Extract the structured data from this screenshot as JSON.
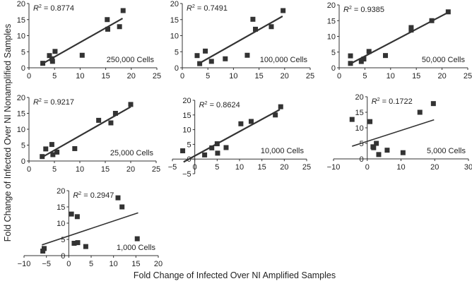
{
  "chart_data": {
    "type": "scatter",
    "ylabel": "Fold Change of Infected Over NI Nonamplified Samples",
    "xlabel": "Fold Change of Infected Over NI Amplified Samples",
    "panels": [
      {
        "label": "250,000 Cells",
        "r2": "0.8774",
        "xlim": [
          0,
          25
        ],
        "ylim": [
          0,
          20
        ],
        "xticks": [
          0,
          5,
          10,
          15,
          20,
          25
        ],
        "yticks": [
          0,
          5,
          10,
          15,
          20
        ],
        "fit": {
          "slope": 0.9,
          "intercept": -1.1,
          "xrange": [
            2.7,
            18.3
          ]
        },
        "points": [
          [
            2.7,
            1.4
          ],
          [
            4,
            3.8
          ],
          [
            4.5,
            2.8
          ],
          [
            4.6,
            2
          ],
          [
            5.1,
            5.1
          ],
          [
            10.4,
            3.9
          ],
          [
            15.3,
            15
          ],
          [
            15.4,
            12
          ],
          [
            17.7,
            12.8
          ],
          [
            18.4,
            17.8
          ]
        ]
      },
      {
        "label": "100,000 Cells",
        "r2": "0.7491",
        "xlim": [
          0,
          25
        ],
        "ylim": [
          0,
          20
        ],
        "xticks": [
          0,
          5,
          10,
          15,
          20,
          25
        ],
        "yticks": [
          0,
          5,
          10,
          15,
          20
        ],
        "fit": {
          "slope": 0.9,
          "intercept": -1.6,
          "xrange": [
            3,
            19.6
          ]
        },
        "points": [
          [
            2.9,
            3.8
          ],
          [
            3.4,
            1.3
          ],
          [
            4.5,
            5.2
          ],
          [
            5.7,
            2
          ],
          [
            8.4,
            2.8
          ],
          [
            12.7,
            3.9
          ],
          [
            13.8,
            15.1
          ],
          [
            14.3,
            12
          ],
          [
            17.4,
            12.8
          ],
          [
            19.7,
            17.8
          ]
        ]
      },
      {
        "label": "50,000 Cells",
        "r2": "0.9385",
        "xlim": [
          0,
          25
        ],
        "ylim": [
          0,
          20
        ],
        "xticks": [
          0,
          5,
          10,
          15,
          20,
          25
        ],
        "yticks": [
          0,
          5,
          10,
          15,
          20
        ],
        "fit": {
          "slope": 0.86,
          "intercept": -0.6,
          "xrange": [
            2.2,
            21.2
          ]
        },
        "points": [
          [
            2.2,
            3.8
          ],
          [
            2.2,
            1.4
          ],
          [
            4.3,
            2
          ],
          [
            4.8,
            2.8
          ],
          [
            5.8,
            5.2
          ],
          [
            9,
            3.9
          ],
          [
            14,
            12
          ],
          [
            14,
            12.8
          ],
          [
            18,
            15
          ],
          [
            21.2,
            17.8
          ]
        ]
      },
      {
        "label": "25,000 Cells",
        "r2": "0.9217",
        "xlim": [
          0,
          25
        ],
        "ylim": [
          0,
          20
        ],
        "xticks": [
          0,
          5,
          10,
          15,
          20,
          25
        ],
        "yticks": [
          0,
          5,
          10,
          15,
          20
        ],
        "fit": {
          "slope": 0.91,
          "intercept": -1.16,
          "xrange": [
            2.6,
            20
          ]
        },
        "points": [
          [
            2.6,
            1.4
          ],
          [
            3.3,
            3.8
          ],
          [
            4.5,
            5.2
          ],
          [
            4.7,
            2
          ],
          [
            5.5,
            2.8
          ],
          [
            9,
            3.9
          ],
          [
            13.7,
            12.8
          ],
          [
            16.1,
            12
          ],
          [
            17,
            15
          ],
          [
            20,
            17.8
          ]
        ]
      },
      {
        "label": "10,000 Cells",
        "r2": "0.8624",
        "xlim": [
          -5,
          25
        ],
        "ylim": [
          -5,
          20
        ],
        "xticks": [
          -5,
          0,
          5,
          10,
          15,
          20,
          25
        ],
        "yticks": [
          -5,
          0,
          5,
          10,
          15,
          20
        ],
        "fit": {
          "slope": 0.83,
          "intercept": 1.07,
          "xrange": [
            -2.5,
            19
          ]
        },
        "points": [
          [
            -2.7,
            2.8
          ],
          [
            2.2,
            1.4
          ],
          [
            3.8,
            3.8
          ],
          [
            5,
            5.2
          ],
          [
            5.1,
            2
          ],
          [
            7,
            3.9
          ],
          [
            10.3,
            12
          ],
          [
            12.6,
            12.8
          ],
          [
            18,
            15
          ],
          [
            19.2,
            17.8
          ]
        ]
      },
      {
        "label": "5,000 Cells",
        "r2": "0.1722",
        "xlim": [
          -10,
          30
        ],
        "ylim": [
          0,
          20
        ],
        "xticks": [
          -10,
          0,
          10,
          20,
          30
        ],
        "yticks": [
          0,
          5,
          10,
          15,
          20
        ],
        "fit": {
          "slope": 0.35,
          "intercept": 5.65,
          "xrange": [
            -4.5,
            19.8
          ]
        },
        "points": [
          [
            -4.5,
            12.7
          ],
          [
            0.8,
            12
          ],
          [
            1.7,
            3.9
          ],
          [
            1.9,
            3.6
          ],
          [
            2.7,
            5
          ],
          [
            3.4,
            1.4
          ],
          [
            5.9,
            2.8
          ],
          [
            10.6,
            2
          ],
          [
            15.6,
            15
          ],
          [
            19.6,
            17.8
          ]
        ]
      },
      {
        "label": "1,000 Cells",
        "r2": "0.2947",
        "xlim": [
          -10,
          20
        ],
        "ylim": [
          0,
          20
        ],
        "xticks": [
          -10,
          -5,
          0,
          5,
          10,
          15,
          20
        ],
        "yticks": [
          0,
          5,
          10,
          15,
          20
        ],
        "fit": {
          "slope": 0.46,
          "intercept": 6.06,
          "xrange": [
            -6,
            15.5
          ]
        },
        "points": [
          [
            -5.8,
            1.4
          ],
          [
            -5.5,
            2.2
          ],
          [
            0.6,
            12.8
          ],
          [
            1.9,
            12
          ],
          [
            1.2,
            3.8
          ],
          [
            2,
            4
          ],
          [
            3.8,
            2.8
          ],
          [
            11,
            17.8
          ],
          [
            11.9,
            15
          ],
          [
            15.3,
            5.2
          ]
        ]
      }
    ]
  }
}
